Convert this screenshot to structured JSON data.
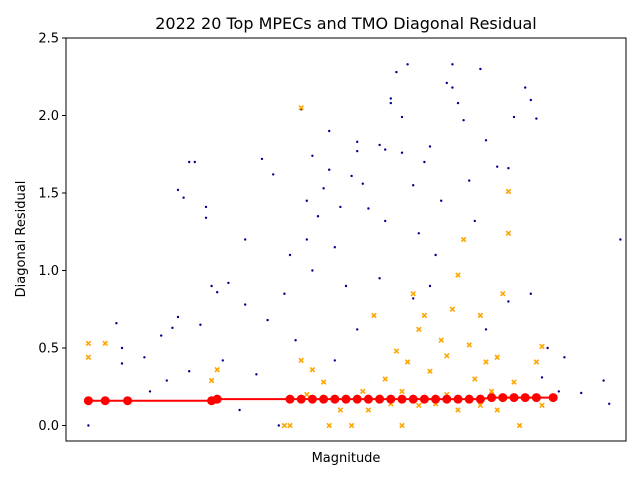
{
  "chart_data": {
    "type": "scatter",
    "title": "2022 20 Top MPECs and TMO Diagonal Residual",
    "xlabel": "Magnitude",
    "ylabel": "Diagonal Residual",
    "ylim": [
      -0.1,
      2.5
    ],
    "xlim": [
      14.6,
      24.6
    ],
    "yticks": [
      0.0,
      0.5,
      1.0,
      1.5,
      2.0,
      2.5
    ],
    "ytick_labels": [
      "0.0",
      "0.5",
      "1.0",
      "1.5",
      "2.0",
      "2.5"
    ],
    "xticks_shown": false,
    "grid": false,
    "legend": "none",
    "colors": {
      "mpec_points": "#00008b",
      "tmo_points": "#ffa500",
      "trend_line": "#ff0000"
    },
    "series": [
      {
        "marker": "dot",
        "color": "#00008b",
        "points": [
          [
            15.0,
            0.0
          ],
          [
            15.5,
            0.66
          ],
          [
            15.6,
            0.5
          ],
          [
            15.6,
            0.4
          ],
          [
            16.0,
            0.44
          ],
          [
            16.3,
            0.58
          ],
          [
            16.5,
            0.63
          ],
          [
            16.6,
            0.7
          ],
          [
            16.6,
            1.52
          ],
          [
            16.7,
            1.47
          ],
          [
            16.8,
            1.7
          ],
          [
            16.9,
            1.7
          ],
          [
            17.0,
            0.65
          ],
          [
            17.1,
            1.34
          ],
          [
            17.1,
            1.41
          ],
          [
            17.2,
            0.9
          ],
          [
            17.3,
            0.86
          ],
          [
            17.5,
            0.92
          ],
          [
            17.8,
            1.2
          ],
          [
            17.8,
            0.78
          ],
          [
            18.1,
            1.72
          ],
          [
            18.2,
            0.68
          ],
          [
            18.3,
            1.62
          ],
          [
            18.5,
            0.85
          ],
          [
            18.6,
            1.1
          ],
          [
            18.8,
            2.04
          ],
          [
            18.9,
            1.45
          ],
          [
            18.9,
            1.2
          ],
          [
            19.0,
            1.74
          ],
          [
            19.0,
            1.0
          ],
          [
            19.1,
            1.35
          ],
          [
            19.2,
            1.53
          ],
          [
            19.3,
            1.9
          ],
          [
            19.3,
            1.65
          ],
          [
            19.4,
            1.15
          ],
          [
            19.5,
            1.41
          ],
          [
            19.6,
            0.9
          ],
          [
            19.7,
            1.61
          ],
          [
            19.8,
            1.77
          ],
          [
            19.8,
            1.83
          ],
          [
            19.9,
            1.56
          ],
          [
            20.0,
            1.4
          ],
          [
            20.1,
            0.71
          ],
          [
            20.2,
            1.81
          ],
          [
            20.3,
            1.78
          ],
          [
            20.3,
            1.32
          ],
          [
            20.4,
            2.11
          ],
          [
            20.4,
            2.08
          ],
          [
            20.5,
            2.28
          ],
          [
            20.6,
            1.76
          ],
          [
            20.6,
            1.99
          ],
          [
            20.7,
            2.33
          ],
          [
            20.8,
            1.55
          ],
          [
            20.9,
            1.24
          ],
          [
            21.0,
            1.7
          ],
          [
            21.1,
            1.8
          ],
          [
            21.2,
            1.1
          ],
          [
            21.3,
            1.45
          ],
          [
            21.4,
            2.21
          ],
          [
            21.5,
            2.33
          ],
          [
            21.5,
            2.18
          ],
          [
            21.6,
            2.08
          ],
          [
            21.7,
            1.97
          ],
          [
            21.8,
            1.58
          ],
          [
            21.9,
            1.32
          ],
          [
            22.0,
            2.3
          ],
          [
            22.1,
            1.84
          ],
          [
            22.3,
            1.67
          ],
          [
            22.5,
            1.66
          ],
          [
            22.6,
            1.99
          ],
          [
            22.8,
            2.18
          ],
          [
            22.9,
            2.1
          ],
          [
            23.0,
            1.98
          ],
          [
            23.2,
            0.5
          ],
          [
            23.5,
            0.44
          ],
          [
            23.8,
            0.21
          ],
          [
            24.2,
            0.29
          ],
          [
            24.3,
            0.14
          ],
          [
            24.5,
            1.2
          ],
          [
            22.5,
            0.8
          ],
          [
            22.9,
            0.85
          ],
          [
            22.1,
            0.62
          ],
          [
            21.1,
            0.9
          ],
          [
            20.8,
            0.82
          ],
          [
            20.2,
            0.95
          ],
          [
            19.8,
            0.62
          ],
          [
            19.4,
            0.42
          ],
          [
            18.7,
            0.55
          ],
          [
            18.0,
            0.33
          ],
          [
            17.4,
            0.42
          ],
          [
            16.8,
            0.35
          ],
          [
            16.4,
            0.29
          ],
          [
            16.1,
            0.22
          ],
          [
            17.7,
            0.1
          ],
          [
            18.4,
            0.0
          ],
          [
            22.7,
            0.0
          ],
          [
            23.1,
            0.31
          ],
          [
            23.4,
            0.22
          ]
        ]
      },
      {
        "marker": "x",
        "color": "#ffa500",
        "points": [
          [
            15.0,
            0.53
          ],
          [
            15.0,
            0.44
          ],
          [
            15.3,
            0.53
          ],
          [
            17.2,
            0.29
          ],
          [
            17.3,
            0.36
          ],
          [
            18.5,
            0.0
          ],
          [
            18.6,
            0.0
          ],
          [
            18.8,
            2.05
          ],
          [
            18.8,
            0.42
          ],
          [
            19.0,
            0.36
          ],
          [
            19.2,
            0.28
          ],
          [
            19.3,
            0.0
          ],
          [
            19.7,
            0.0
          ],
          [
            20.1,
            0.71
          ],
          [
            20.3,
            0.3
          ],
          [
            20.5,
            0.48
          ],
          [
            20.6,
            0.0
          ],
          [
            20.7,
            0.41
          ],
          [
            20.8,
            0.85
          ],
          [
            20.9,
            0.62
          ],
          [
            21.0,
            0.71
          ],
          [
            21.1,
            0.35
          ],
          [
            21.3,
            0.55
          ],
          [
            21.4,
            0.45
          ],
          [
            21.5,
            0.75
          ],
          [
            21.6,
            0.97
          ],
          [
            21.7,
            1.2
          ],
          [
            21.8,
            0.52
          ],
          [
            21.9,
            0.3
          ],
          [
            22.0,
            0.71
          ],
          [
            22.1,
            0.41
          ],
          [
            22.3,
            0.44
          ],
          [
            22.4,
            0.85
          ],
          [
            22.5,
            1.51
          ],
          [
            22.5,
            1.24
          ],
          [
            22.6,
            0.28
          ],
          [
            22.7,
            0.0
          ],
          [
            23.0,
            0.41
          ],
          [
            23.1,
            0.51
          ],
          [
            23.1,
            0.13
          ],
          [
            19.5,
            0.1
          ],
          [
            20.0,
            0.1
          ],
          [
            20.4,
            0.14
          ],
          [
            20.9,
            0.13
          ],
          [
            21.2,
            0.14
          ],
          [
            21.6,
            0.1
          ],
          [
            22.0,
            0.13
          ],
          [
            22.3,
            0.1
          ],
          [
            18.9,
            0.2
          ],
          [
            19.9,
            0.22
          ],
          [
            20.6,
            0.22
          ],
          [
            21.4,
            0.2
          ],
          [
            22.2,
            0.22
          ]
        ]
      },
      {
        "marker": "circle",
        "line": true,
        "color": "#ff0000",
        "points": [
          [
            15.0,
            0.16
          ],
          [
            15.3,
            0.16
          ],
          [
            15.7,
            0.16
          ],
          [
            17.2,
            0.16
          ],
          [
            17.3,
            0.17
          ],
          [
            18.6,
            0.17
          ],
          [
            18.8,
            0.17
          ],
          [
            19.0,
            0.17
          ],
          [
            19.2,
            0.17
          ],
          [
            19.4,
            0.17
          ],
          [
            19.6,
            0.17
          ],
          [
            19.8,
            0.17
          ],
          [
            20.0,
            0.17
          ],
          [
            20.2,
            0.17
          ],
          [
            20.4,
            0.17
          ],
          [
            20.6,
            0.17
          ],
          [
            20.8,
            0.17
          ],
          [
            21.0,
            0.17
          ],
          [
            21.2,
            0.17
          ],
          [
            21.4,
            0.17
          ],
          [
            21.6,
            0.17
          ],
          [
            21.8,
            0.17
          ],
          [
            22.0,
            0.17
          ],
          [
            22.2,
            0.18
          ],
          [
            22.4,
            0.18
          ],
          [
            22.6,
            0.18
          ],
          [
            22.8,
            0.18
          ],
          [
            23.0,
            0.18
          ],
          [
            23.3,
            0.18
          ]
        ]
      }
    ]
  }
}
